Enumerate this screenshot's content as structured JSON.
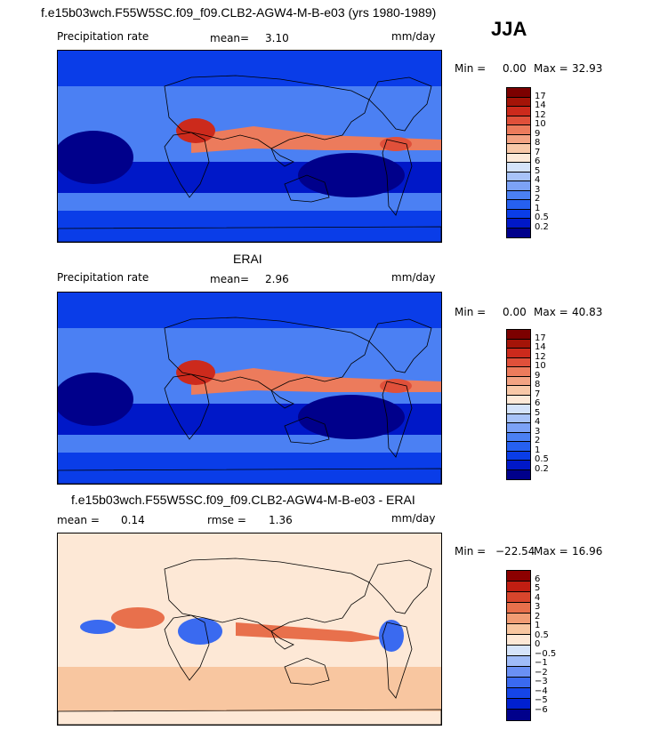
{
  "header": {
    "title": "f.e15b03wch.F55W5SC.f09_f09.CLB2-AGW4-M-B-e03 (yrs 1980-1989)",
    "season": "JJA"
  },
  "palettes": {
    "precip": [
      "#00008b",
      "#0018c8",
      "#0a3de8",
      "#2660f0",
      "#4b80f3",
      "#7ca2f6",
      "#a8c3f8",
      "#d4e3fa",
      "#fde9d8",
      "#f8c8a8",
      "#f3a383",
      "#ec7b5c",
      "#e0503a",
      "#cc2a1c",
      "#a41408",
      "#7c0000"
    ],
    "diff": [
      "#00008b",
      "#0020d0",
      "#1545e8",
      "#3a6af0",
      "#6a90f4",
      "#a0bcf8",
      "#d6e4fa",
      "#fde8d6",
      "#f8c6a0",
      "#f19c74",
      "#e8704c",
      "#d8452c",
      "#c01e12",
      "#8c0000"
    ]
  },
  "panels": [
    {
      "id": "model",
      "subtitle": "",
      "left_label": "Precipitation rate",
      "stat1_label": "mean=",
      "stat1_value": "3.10",
      "stat2_label": "",
      "stat2_value": "",
      "units": "mm/day",
      "min_label": "Min =",
      "min_value": "0.00",
      "max_label": "Max =",
      "max_value": "32.93",
      "colorbar_ticks": [
        "17",
        "14",
        "12",
        "10",
        "9",
        "8",
        "7",
        "6",
        "5",
        "4",
        "3",
        "2",
        "1",
        "0.5",
        "0.2"
      ]
    },
    {
      "id": "obs",
      "subtitle": "ERAI",
      "left_label": "Precipitation rate",
      "stat1_label": "mean=",
      "stat1_value": "2.96",
      "stat2_label": "",
      "stat2_value": "",
      "units": "mm/day",
      "min_label": "Min =",
      "min_value": "0.00",
      "max_label": "Max =",
      "max_value": "40.83",
      "colorbar_ticks": [
        "17",
        "14",
        "12",
        "10",
        "9",
        "8",
        "7",
        "6",
        "5",
        "4",
        "3",
        "2",
        "1",
        "0.5",
        "0.2"
      ]
    },
    {
      "id": "diff",
      "subtitle": "f.e15b03wch.F55W5SC.f09_f09.CLB2-AGW4-M-B-e03 - ERAI",
      "left_label": "",
      "stat1_label": "mean =",
      "stat1_value": "0.14",
      "stat2_label": "rmse =",
      "stat2_value": "1.36",
      "units": "mm/day",
      "min_label": "Min =",
      "min_value": "−22.54",
      "max_label": "Max =",
      "max_value": "16.96",
      "colorbar_ticks": [
        "6",
        "5",
        "4",
        "3",
        "2",
        "1",
        "0.5",
        "0",
        "−0.5",
        "−1",
        "−2",
        "−3",
        "−4",
        "−5",
        "−6"
      ]
    }
  ],
  "chart_data": [
    {
      "type": "heatmap",
      "title": "",
      "variable": "Precipitation rate",
      "units": "mm/day",
      "mean": 3.1,
      "min": 0.0,
      "max": 32.93,
      "contour_levels": [
        0.2,
        0.5,
        1,
        2,
        3,
        4,
        5,
        6,
        7,
        8,
        9,
        10,
        12,
        14,
        17
      ]
    },
    {
      "type": "heatmap",
      "title": "ERAI",
      "variable": "Precipitation rate",
      "units": "mm/day",
      "mean": 2.96,
      "min": 0.0,
      "max": 40.83,
      "contour_levels": [
        0.2,
        0.5,
        1,
        2,
        3,
        4,
        5,
        6,
        7,
        8,
        9,
        10,
        12,
        14,
        17
      ]
    },
    {
      "type": "heatmap",
      "title": "f.e15b03wch.F55W5SC.f09_f09.CLB2-AGW4-M-B-e03 - ERAI",
      "units": "mm/day",
      "mean": 0.14,
      "rmse": 1.36,
      "min": -22.54,
      "max": 16.96,
      "contour_levels": [
        -6,
        -5,
        -4,
        -3,
        -2,
        -1,
        -0.5,
        0,
        0.5,
        1,
        2,
        3,
        4,
        5,
        6
      ]
    }
  ]
}
